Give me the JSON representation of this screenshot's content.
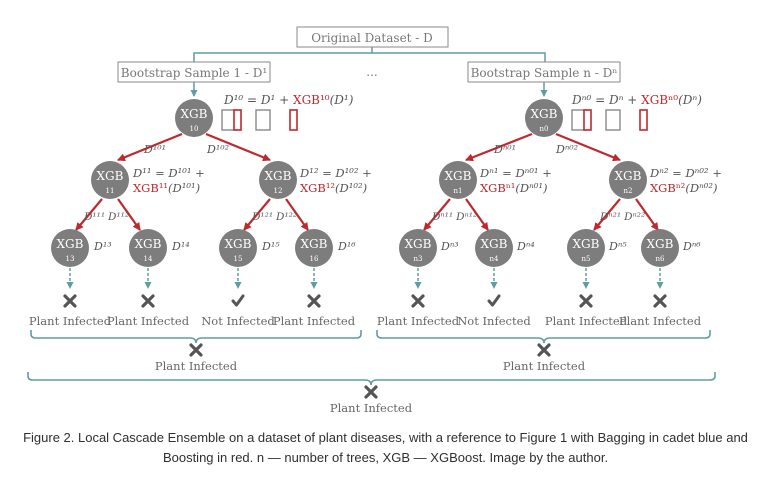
{
  "diagram": {
    "root_label": "Original Dataset - D",
    "dots": "...",
    "final_label": "Plant Infected",
    "left": {
      "bootstrap_label": "Bootstrap Sample 1 - D¹",
      "root": {
        "name": "XGB",
        "sub": "10",
        "eq_lhs": "D¹⁰ = D¹ + ",
        "eq_red": "XGB¹⁰",
        "eq_tail": "(D¹)"
      },
      "edge_labels": [
        "D¹⁰¹",
        "D¹⁰²"
      ],
      "mids": [
        {
          "name": "XGB",
          "sub": "11",
          "eq1": "D¹¹ = D¹⁰¹ +",
          "eq2_red": "XGB¹¹",
          "eq2_tail": "(D¹⁰¹)",
          "edge_labels": [
            "D¹¹¹",
            "D¹¹²"
          ]
        },
        {
          "name": "XGB",
          "sub": "12",
          "eq1": "D¹² = D¹⁰² +",
          "eq2_red": "XGB¹²",
          "eq2_tail": "(D¹⁰²)",
          "edge_labels": [
            "D¹²¹",
            "D¹²²"
          ]
        }
      ],
      "leaves": [
        {
          "name": "XGB",
          "sub": "13",
          "d": "D¹³",
          "result": "cross",
          "label": "Plant Infected"
        },
        {
          "name": "XGB",
          "sub": "14",
          "d": "D¹⁴",
          "result": "cross",
          "label": "Plant Infected"
        },
        {
          "name": "XGB",
          "sub": "15",
          "d": "D¹⁵",
          "result": "check",
          "label": "Not Infected"
        },
        {
          "name": "XGB",
          "sub": "16",
          "d": "D¹⁶",
          "result": "cross",
          "label": "Plant Infected"
        }
      ],
      "group_label": "Plant Infected"
    },
    "right": {
      "bootstrap_label": "Bootstrap Sample n - Dⁿ",
      "root": {
        "name": "XGB",
        "sub": "n0",
        "eq_lhs": "Dⁿ⁰ = Dⁿ + ",
        "eq_red": "XGBⁿ⁰",
        "eq_tail": "(Dⁿ)"
      },
      "edge_labels": [
        "Dⁿ⁰¹",
        "Dⁿ⁰²"
      ],
      "mids": [
        {
          "name": "XGB",
          "sub": "n1",
          "eq1": "Dⁿ¹ = Dⁿ⁰¹ +",
          "eq2_red": "XGBⁿ¹",
          "eq2_tail": "(Dⁿ⁰¹)",
          "edge_labels": [
            "Dⁿ¹¹",
            "Dⁿ¹²"
          ]
        },
        {
          "name": "XGB",
          "sub": "n2",
          "eq1": "Dⁿ² = Dⁿ⁰² +",
          "eq2_red": "XGBⁿ²",
          "eq2_tail": "(Dⁿ⁰²)",
          "edge_labels": [
            "Dⁿ²¹",
            "Dⁿ²²"
          ]
        }
      ],
      "leaves": [
        {
          "name": "XGB",
          "sub": "n3",
          "d": "Dⁿ³",
          "result": "cross",
          "label": "Plant Infected"
        },
        {
          "name": "XGB",
          "sub": "n4",
          "d": "Dⁿ⁴",
          "result": "check",
          "label": "Not Infected"
        },
        {
          "name": "XGB",
          "sub": "n5",
          "d": "Dⁿ⁵",
          "result": "cross",
          "label": "Plant Infected"
        },
        {
          "name": "XGB",
          "sub": "n6",
          "d": "Dⁿ⁶",
          "result": "cross",
          "label": "Plant Infected"
        }
      ],
      "group_label": "Plant Infected"
    }
  },
  "caption": "Figure 2. Local Cascade Ensemble on a dataset of plant diseases, with a reference to Figure 1 with Bagging in cadet blue and Boosting in red. n — number of trees, XGB — XGBoost. Image by the author.",
  "colors": {
    "bagging": "#5f9ea0",
    "boosting": "#c0282d",
    "node": "#7d7d7d",
    "box_border": "#8a8a8a",
    "text": "#555555"
  },
  "icons": {
    "cross": "cross-icon",
    "check": "check-icon",
    "square": "dataset-square-icon"
  }
}
